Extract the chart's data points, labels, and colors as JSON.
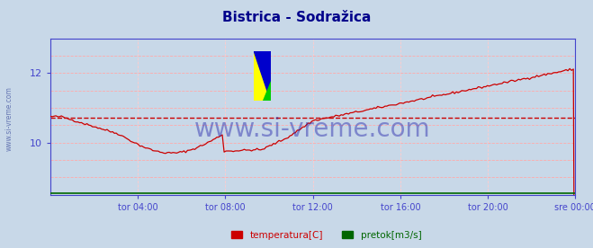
{
  "title": "Bistrica - Sodražica",
  "title_color": "#00008B",
  "bg_color": "#c8d8e8",
  "axis_color": "#4444cc",
  "grid_color": "#ffaaaa",
  "grid_v_color": "#ffcccc",
  "x_labels": [
    "tor 04:00",
    "tor 08:00",
    "tor 12:00",
    "tor 16:00",
    "tor 20:00",
    "sre 00:00"
  ],
  "x_ticks_norm": [
    0.1667,
    0.3333,
    0.5,
    0.6667,
    0.8333,
    1.0
  ],
  "ylim_min": 8.5,
  "ylim_max": 13.0,
  "yticks": [
    10,
    12
  ],
  "temp_color": "#cc0000",
  "pretok_color": "#006600",
  "avg_line_color": "#cc0000",
  "avg_line_value": 10.72,
  "watermark_text": "www.si-vreme.com",
  "watermark_color": "#2222aa",
  "legend_labels": [
    "temperatura[C]",
    "pretok[m3/s]"
  ],
  "legend_colors": [
    "#cc0000",
    "#006600"
  ],
  "sidebar_text": "www.si-vreme.com",
  "sidebar_color": "#5566aa"
}
